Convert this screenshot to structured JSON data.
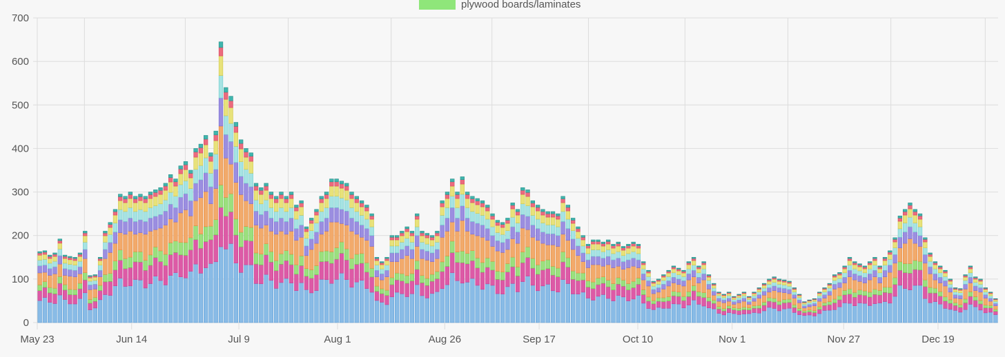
{
  "chart_data": {
    "type": "bar",
    "stacked": true,
    "legend": {
      "placement": "top",
      "visible_entries": [
        {
          "label": "plywood boards/laminates",
          "color": "#8fe67a"
        }
      ]
    },
    "yticks": [
      "0",
      "100",
      "200",
      "300",
      "400",
      "500",
      "600",
      "700"
    ],
    "ylim": [
      0,
      700
    ],
    "grid": true,
    "xtick_labels": [
      "May 23",
      "Jun 14",
      "Jul 9",
      "Aug 1",
      "Aug 26",
      "Sep 17",
      "Oct 10",
      "Nov 1",
      "Nov 27",
      "Dec 19"
    ],
    "xtick_dates": [
      "2022-05-23",
      "2022-06-14",
      "2022-07-09",
      "2022-08-01",
      "2022-08-26",
      "2022-09-17",
      "2022-10-10",
      "2022-11-01",
      "2022-11-27",
      "2022-12-19"
    ],
    "start_date": "2022-05-23",
    "end_date": "2023-01-02",
    "totals": [
      [
        0,
        163
      ],
      [
        1,
        165
      ],
      [
        2,
        155
      ],
      [
        3,
        160
      ],
      [
        4,
        192
      ],
      [
        5,
        155
      ],
      [
        6,
        152
      ],
      [
        7,
        150
      ],
      [
        8,
        160
      ],
      [
        9,
        210
      ],
      [
        10,
        108
      ],
      [
        11,
        110
      ],
      [
        12,
        150
      ],
      [
        13,
        210
      ],
      [
        14,
        230
      ],
      [
        15,
        260
      ],
      [
        16,
        295
      ],
      [
        17,
        290
      ],
      [
        18,
        300
      ],
      [
        19,
        290
      ],
      [
        20,
        295
      ],
      [
        21,
        290
      ],
      [
        22,
        300
      ],
      [
        23,
        305
      ],
      [
        24,
        310
      ],
      [
        25,
        320
      ],
      [
        26,
        340
      ],
      [
        27,
        330
      ],
      [
        28,
        360
      ],
      [
        29,
        370
      ],
      [
        30,
        350
      ],
      [
        31,
        400
      ],
      [
        32,
        410
      ],
      [
        33,
        430
      ],
      [
        34,
        390
      ],
      [
        35,
        440
      ],
      [
        36,
        645
      ],
      [
        37,
        540
      ],
      [
        38,
        520
      ],
      [
        39,
        460
      ],
      [
        40,
        420
      ],
      [
        41,
        400
      ],
      [
        42,
        390
      ],
      [
        43,
        320
      ],
      [
        44,
        310
      ],
      [
        45,
        320
      ],
      [
        46,
        300
      ],
      [
        47,
        290
      ],
      [
        48,
        300
      ],
      [
        49,
        290
      ],
      [
        50,
        300
      ],
      [
        51,
        270
      ],
      [
        52,
        280
      ],
      [
        53,
        220
      ],
      [
        54,
        240
      ],
      [
        55,
        260
      ],
      [
        56,
        290
      ],
      [
        57,
        300
      ],
      [
        58,
        330
      ],
      [
        59,
        330
      ],
      [
        60,
        325
      ],
      [
        61,
        320
      ],
      [
        62,
        300
      ],
      [
        63,
        290
      ],
      [
        64,
        280
      ],
      [
        65,
        270
      ],
      [
        66,
        250
      ],
      [
        67,
        150
      ],
      [
        68,
        140
      ],
      [
        69,
        150
      ],
      [
        70,
        200
      ],
      [
        71,
        200
      ],
      [
        72,
        210
      ],
      [
        73,
        220
      ],
      [
        74,
        210
      ],
      [
        75,
        250
      ],
      [
        76,
        210
      ],
      [
        77,
        205
      ],
      [
        78,
        200
      ],
      [
        79,
        210
      ],
      [
        80,
        280
      ],
      [
        81,
        300
      ],
      [
        82,
        330
      ],
      [
        83,
        300
      ],
      [
        84,
        335
      ],
      [
        85,
        300
      ],
      [
        86,
        290
      ],
      [
        87,
        285
      ],
      [
        88,
        280
      ],
      [
        89,
        270
      ],
      [
        90,
        250
      ],
      [
        91,
        235
      ],
      [
        92,
        230
      ],
      [
        93,
        240
      ],
      [
        94,
        275
      ],
      [
        95,
        260
      ],
      [
        96,
        310
      ],
      [
        97,
        305
      ],
      [
        98,
        280
      ],
      [
        99,
        270
      ],
      [
        100,
        260
      ],
      [
        101,
        255
      ],
      [
        102,
        255
      ],
      [
        103,
        250
      ],
      [
        104,
        290
      ],
      [
        105,
        270
      ],
      [
        106,
        240
      ],
      [
        107,
        220
      ],
      [
        108,
        200
      ],
      [
        109,
        180
      ],
      [
        110,
        190
      ],
      [
        111,
        190
      ],
      [
        112,
        185
      ],
      [
        113,
        190
      ],
      [
        114,
        180
      ],
      [
        115,
        185
      ],
      [
        116,
        175
      ],
      [
        117,
        180
      ],
      [
        118,
        185
      ],
      [
        119,
        180
      ],
      [
        120,
        140
      ],
      [
        121,
        120
      ],
      [
        122,
        95
      ],
      [
        123,
        100
      ],
      [
        124,
        110
      ],
      [
        125,
        120
      ],
      [
        126,
        130
      ],
      [
        127,
        125
      ],
      [
        128,
        120
      ],
      [
        129,
        140
      ],
      [
        130,
        150
      ],
      [
        131,
        130
      ],
      [
        132,
        140
      ],
      [
        133,
        110
      ],
      [
        134,
        90
      ],
      [
        135,
        70
      ],
      [
        136,
        65
      ],
      [
        137,
        70
      ],
      [
        138,
        60
      ],
      [
        139,
        65
      ],
      [
        140,
        70
      ],
      [
        141,
        60
      ],
      [
        142,
        70
      ],
      [
        143,
        80
      ],
      [
        144,
        90
      ],
      [
        145,
        100
      ],
      [
        146,
        105
      ],
      [
        147,
        100
      ],
      [
        148,
        98
      ],
      [
        149,
        95
      ],
      [
        150,
        80
      ],
      [
        151,
        65
      ],
      [
        152,
        48
      ],
      [
        153,
        52
      ],
      [
        154,
        55
      ],
      [
        155,
        70
      ],
      [
        156,
        80
      ],
      [
        157,
        90
      ],
      [
        158,
        110
      ],
      [
        159,
        115
      ],
      [
        160,
        130
      ],
      [
        161,
        150
      ],
      [
        162,
        140
      ],
      [
        163,
        135
      ],
      [
        164,
        130
      ],
      [
        165,
        140
      ],
      [
        166,
        150
      ],
      [
        167,
        130
      ],
      [
        168,
        150
      ],
      [
        169,
        165
      ],
      [
        170,
        195
      ],
      [
        171,
        245
      ],
      [
        172,
        260
      ],
      [
        173,
        275
      ],
      [
        174,
        260
      ],
      [
        175,
        250
      ],
      [
        176,
        195
      ],
      [
        177,
        160
      ],
      [
        178,
        140
      ],
      [
        179,
        130
      ],
      [
        180,
        120
      ],
      [
        181,
        100
      ],
      [
        182,
        80
      ],
      [
        183,
        78
      ],
      [
        184,
        110
      ],
      [
        185,
        130
      ],
      [
        186,
        105
      ],
      [
        187,
        100
      ],
      [
        188,
        80
      ],
      [
        189,
        70
      ],
      [
        190,
        55
      ]
    ],
    "series_order": [
      "light blue",
      "magenta",
      "green (plywood boards/laminates)",
      "orange",
      "purple",
      "cyan",
      "yellow",
      "red",
      "other"
    ],
    "series_shares": [
      0.31,
      0.14,
      0.08,
      0.17,
      0.1,
      0.08,
      0.07,
      0.03,
      0.02
    ]
  }
}
